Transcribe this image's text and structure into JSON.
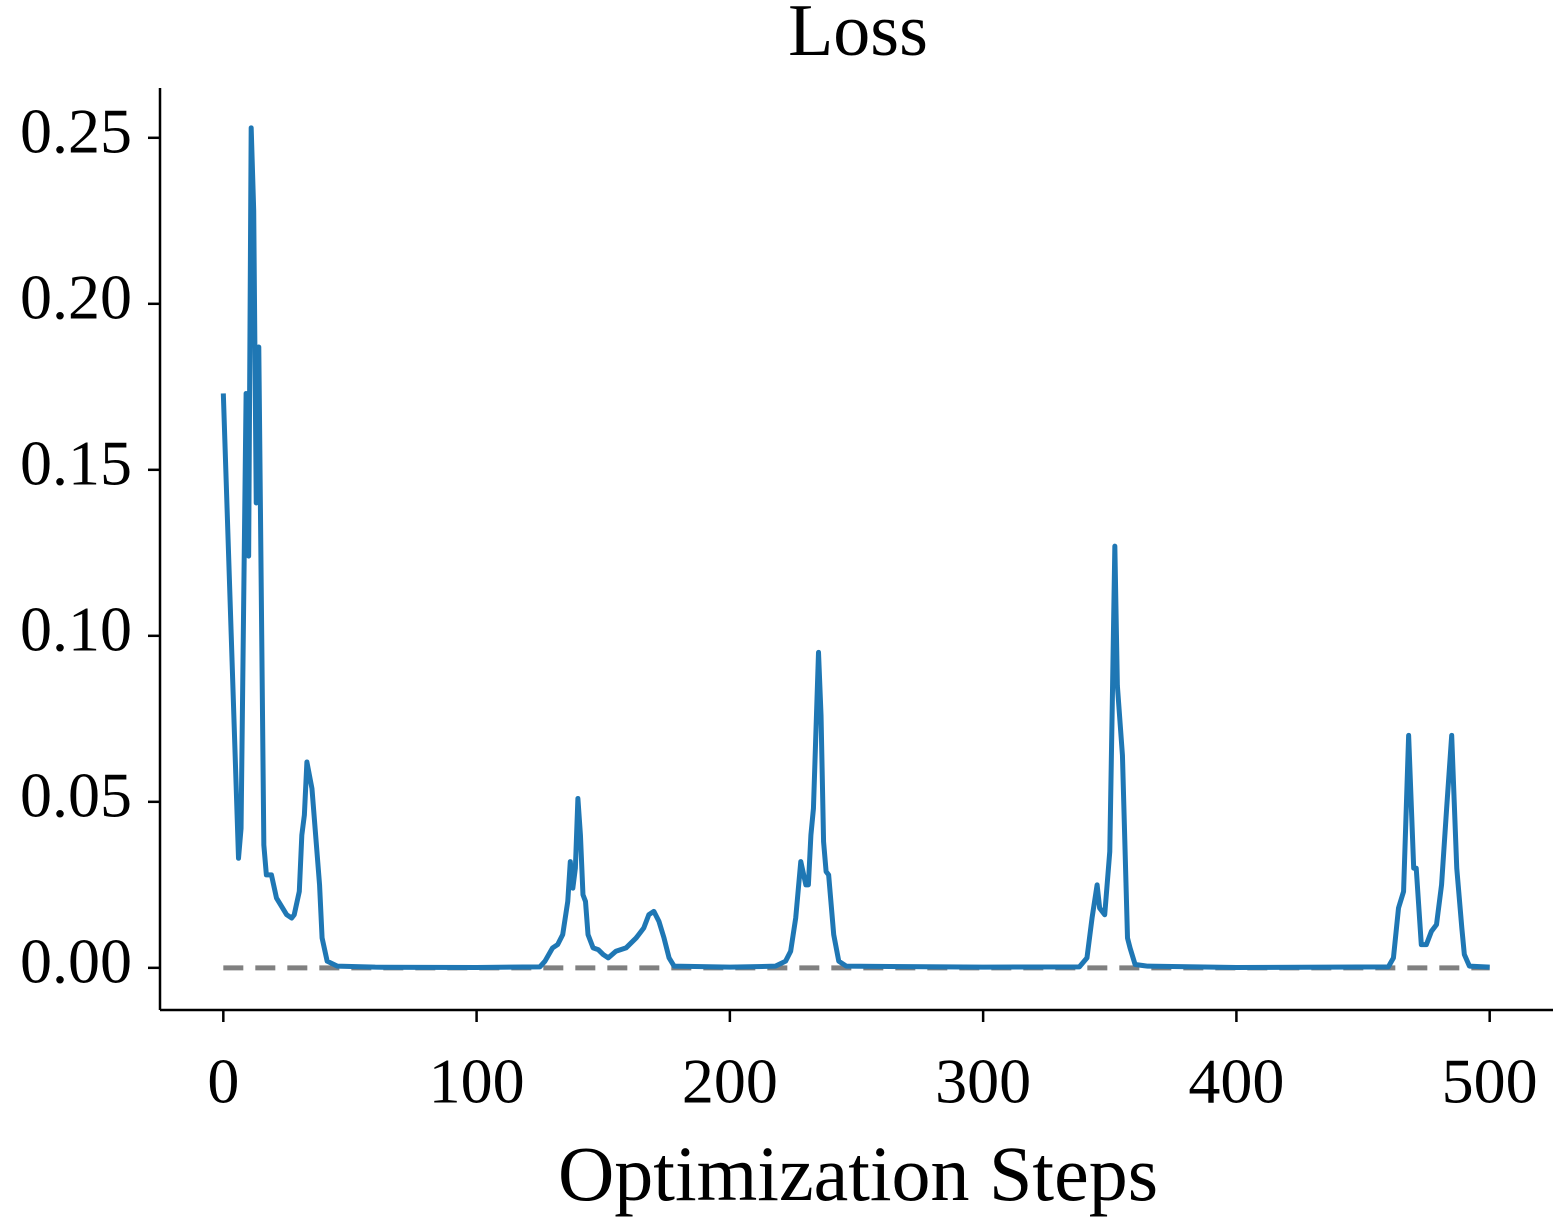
{
  "chart_data": {
    "type": "line",
    "title": "Loss",
    "x_label": "Optimization Steps",
    "x": [
      0,
      6,
      7,
      9,
      10,
      11,
      12,
      13,
      14,
      16,
      17,
      19,
      21,
      25,
      27,
      28,
      30,
      31,
      32,
      33,
      35,
      38,
      39,
      41,
      45,
      60,
      100,
      125,
      127,
      130,
      132,
      134,
      136,
      137,
      138,
      139,
      140,
      141,
      142,
      143,
      144,
      146,
      148,
      150,
      152,
      155,
      159,
      163,
      166,
      168,
      170,
      172,
      174,
      176,
      178,
      200,
      218,
      222,
      224,
      226,
      228,
      230,
      231,
      232,
      233,
      235,
      236,
      237,
      238,
      239,
      241,
      243,
      246,
      300,
      338,
      341,
      343,
      345,
      346,
      348,
      350,
      351,
      352,
      353,
      355,
      357,
      358,
      360,
      365,
      400,
      460,
      462,
      464,
      466,
      468,
      470,
      471,
      473,
      475,
      477,
      479,
      481,
      483,
      485,
      486,
      487,
      489,
      490,
      492,
      500
    ],
    "series": [
      {
        "name": "Loss",
        "color": "#1f77b4",
        "values": [
          0.173,
          0.033,
          0.042,
          0.173,
          0.124,
          0.253,
          0.228,
          0.14,
          0.187,
          0.037,
          0.028,
          0.028,
          0.021,
          0.016,
          0.015,
          0.016,
          0.023,
          0.04,
          0.046,
          0.062,
          0.054,
          0.025,
          0.009,
          0.002,
          0.0005,
          0.0002,
          0.0001,
          0.0003,
          0.002,
          0.006,
          0.007,
          0.01,
          0.02,
          0.032,
          0.024,
          0.03,
          0.051,
          0.04,
          0.022,
          0.02,
          0.01,
          0.006,
          0.0055,
          0.004,
          0.003,
          0.005,
          0.006,
          0.009,
          0.012,
          0.016,
          0.017,
          0.014,
          0.009,
          0.003,
          0.0005,
          0.0002,
          0.0005,
          0.002,
          0.005,
          0.015,
          0.032,
          0.025,
          0.025,
          0.04,
          0.048,
          0.095,
          0.076,
          0.038,
          0.029,
          0.028,
          0.01,
          0.002,
          0.0005,
          0.0002,
          0.0003,
          0.003,
          0.015,
          0.025,
          0.018,
          0.016,
          0.035,
          0.08,
          0.127,
          0.085,
          0.064,
          0.009,
          0.006,
          0.001,
          0.0005,
          0.0001,
          0.0003,
          0.003,
          0.018,
          0.023,
          0.07,
          0.03,
          0.03,
          0.007,
          0.007,
          0.011,
          0.013,
          0.025,
          0.048,
          0.07,
          0.05,
          0.03,
          0.012,
          0.004,
          0.0005,
          0.0002
        ]
      }
    ],
    "reference_line": {
      "y": 0,
      "x": [
        0,
        500
      ],
      "color": "#808080"
    },
    "xlim": [
      -25,
      525
    ],
    "ylim": [
      -0.0127,
      0.265
    ],
    "xticks": [
      0,
      100,
      200,
      300,
      400,
      500
    ],
    "yticks": [
      {
        "value": 0,
        "label": "0.00"
      },
      {
        "value": 0.05,
        "label": "0.05"
      },
      {
        "value": 0.1,
        "label": "0.10"
      },
      {
        "value": 0.15,
        "label": "0.15"
      },
      {
        "value": 0.2,
        "label": "0.20"
      },
      {
        "value": 0.25,
        "label": "0.25"
      }
    ],
    "grid": false
  }
}
